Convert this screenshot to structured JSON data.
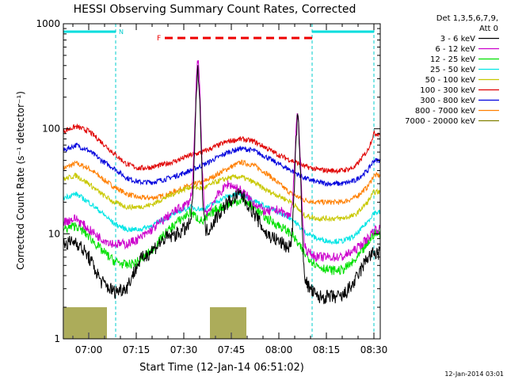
{
  "chart_data": {
    "type": "line",
    "title": "HESSI Observing Summary Count Rates, Corrected",
    "xlabel": "Start Time (12-Jan-14 06:51:02)",
    "ylabel": "Corrected Count Rate (s⁻¹ detector⁻¹)",
    "yscale": "log",
    "ylim": [
      1,
      1000
    ],
    "xlim_minutes": [
      52,
      152
    ],
    "x_ticks": [
      {
        "label": "07:00",
        "minutes": 60
      },
      {
        "label": "07:15",
        "minutes": 75
      },
      {
        "label": "07:30",
        "minutes": 90
      },
      {
        "label": "07:45",
        "minutes": 105
      },
      {
        "label": "08:00",
        "minutes": 120
      },
      {
        "label": "08:15",
        "minutes": 135
      },
      {
        "label": "08:30",
        "minutes": 150
      }
    ],
    "y_ticks": [
      {
        "label": "1",
        "value": 1
      },
      {
        "label": "10",
        "value": 10
      },
      {
        "label": "100",
        "value": 100
      },
      {
        "label": "1000",
        "value": 1000
      }
    ],
    "legend_header": [
      "Det 1,3,5,6,7,9,",
      "Att 0"
    ],
    "legend_position": "right",
    "grid": false,
    "x": [
      52,
      56,
      60,
      64,
      68,
      72,
      76,
      80,
      84,
      88,
      92,
      96,
      100,
      104,
      108,
      112,
      116,
      120,
      124,
      128,
      132,
      136,
      140,
      144,
      148,
      150
    ],
    "series": [
      {
        "name": "3 - 6 keV",
        "color": "#000000",
        "values": [
          8,
          8.5,
          6,
          3.5,
          2.8,
          3.1,
          5.5,
          7,
          9,
          10,
          12,
          9,
          14,
          20,
          24,
          16,
          10,
          8.5,
          7,
          3.5,
          2.5,
          2.5,
          2.5,
          3.5,
          6,
          6.5
        ]
      },
      {
        "name": "6 - 12 keV",
        "color": "#cc00cc",
        "values": [
          13,
          14,
          11,
          9,
          8,
          8,
          9,
          11,
          14,
          17,
          20,
          13,
          22,
          30,
          26,
          20,
          16,
          17,
          14,
          7,
          6,
          6,
          6,
          7,
          9,
          11
        ]
      },
      {
        "name": "12 - 25 keV",
        "color": "#00e000",
        "values": [
          11,
          12,
          9.5,
          7,
          5.5,
          5,
          5.5,
          7,
          10,
          13,
          16,
          13,
          17,
          19,
          21,
          18,
          14,
          12,
          10,
          6.5,
          5,
          4.5,
          4.5,
          5.5,
          8,
          10
        ]
      },
      {
        "name": "25 - 50 keV",
        "color": "#00e5e5",
        "values": [
          22,
          24,
          20,
          16,
          12.5,
          11,
          11,
          12,
          14,
          16,
          18,
          17,
          20,
          23,
          24,
          21,
          18,
          16,
          14,
          10.5,
          9,
          8.5,
          8.5,
          9.5,
          13,
          16
        ]
      },
      {
        "name": "50 - 100 keV",
        "color": "#c8c800",
        "values": [
          33,
          36,
          30,
          24,
          20,
          18,
          18,
          19,
          22,
          25,
          28,
          27,
          31,
          34,
          35,
          31,
          26,
          23,
          20,
          15,
          14,
          14,
          14,
          15,
          20,
          25
        ]
      },
      {
        "name": "100 - 300 keV",
        "color": "#e00000",
        "values": [
          95,
          105,
          95,
          75,
          58,
          46,
          42,
          43,
          46,
          50,
          56,
          60,
          68,
          76,
          80,
          76,
          66,
          56,
          50,
          44,
          41,
          40,
          40,
          43,
          62,
          90
        ]
      },
      {
        "name": "300 - 800 keV",
        "color": "#0000dd",
        "values": [
          62,
          70,
          62,
          50,
          42,
          34,
          31,
          31,
          33,
          36,
          40,
          45,
          52,
          60,
          65,
          62,
          54,
          46,
          40,
          34,
          31,
          30,
          30,
          32,
          40,
          50
        ]
      },
      {
        "name": "800 - 7000 keV",
        "color": "#ff7f00",
        "values": [
          42,
          47,
          42,
          34,
          28,
          24,
          22,
          22,
          23,
          26,
          29,
          31,
          36,
          42,
          48,
          45,
          38,
          30,
          24,
          21,
          20,
          20,
          20,
          22,
          28,
          36
        ]
      },
      {
        "name": "7000 - 20000 keV",
        "color": "#808000",
        "values": [
          2,
          2,
          2,
          2,
          1,
          1,
          1,
          1,
          1,
          1,
          1,
          1,
          2,
          2,
          2,
          1,
          1,
          1,
          1,
          1,
          1,
          1,
          1,
          1,
          1,
          1
        ]
      }
    ],
    "flare_peaks": [
      {
        "minutes": 94.5,
        "values": {
          "3 - 6 keV": 350,
          "6 - 12 keV": 430
        }
      },
      {
        "minutes": 126,
        "values": {
          "3 - 6 keV": 120,
          "6 - 12 keV": 130
        }
      }
    ],
    "eclipse_intervals_minutes": [
      [
        52,
        68.5
      ],
      [
        130.5,
        150
      ]
    ],
    "eclipse_label": "N",
    "flare_interval_minutes": [
      84,
      131
    ],
    "flare_label": "F",
    "timestamp": "12-Jan-2014 03:01"
  }
}
